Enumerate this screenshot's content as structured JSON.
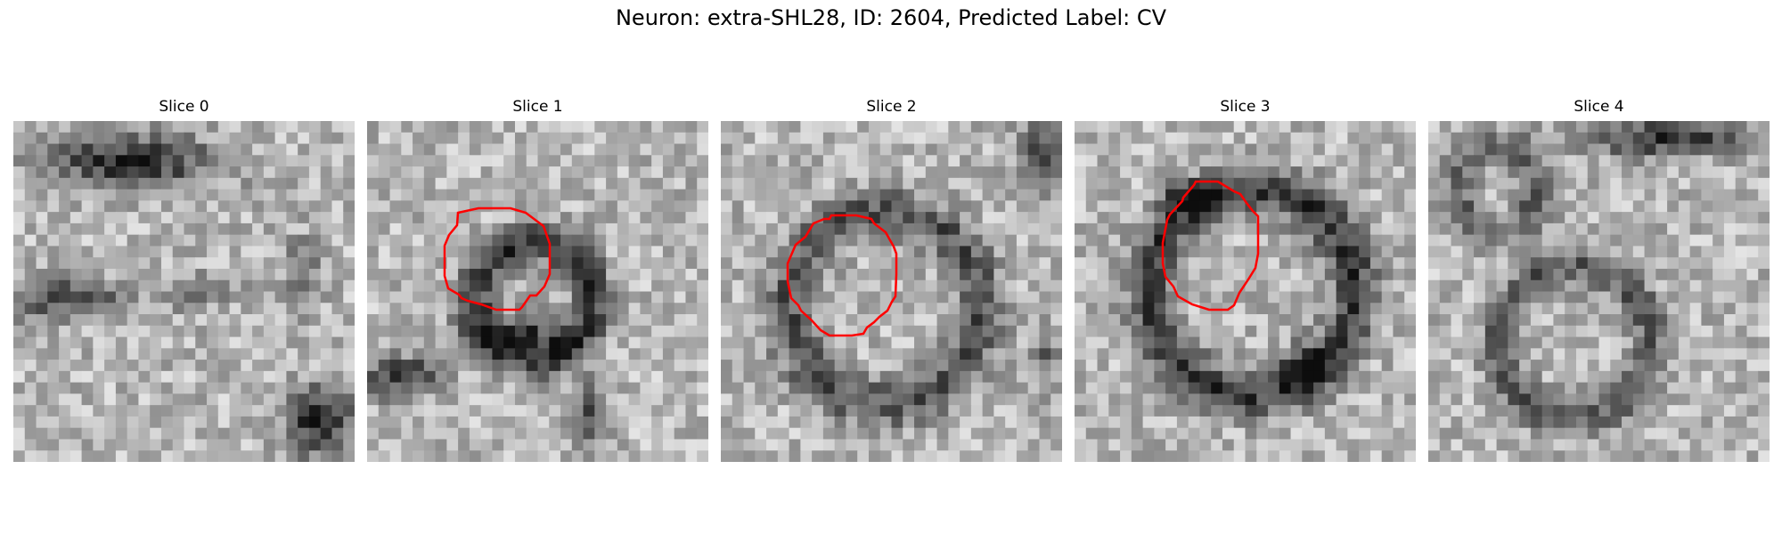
{
  "figure": {
    "title": "Neuron: extra-SHL28, ID: 2604, Predicted Label: CV"
  },
  "panels": [
    {
      "title": "Slice 0",
      "contour": false
    },
    {
      "title": "Slice 1",
      "contour": true
    },
    {
      "title": "Slice 2",
      "contour": true
    },
    {
      "title": "Slice 3",
      "contour": true
    },
    {
      "title": "Slice 4",
      "contour": false
    }
  ],
  "colors": {
    "contour": "#ff0000",
    "background": "#ffffff"
  }
}
